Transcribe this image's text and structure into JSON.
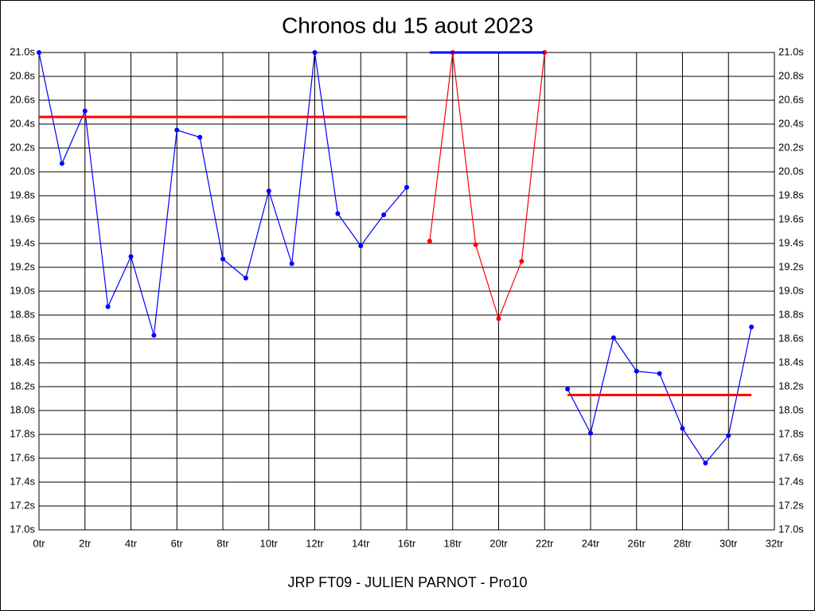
{
  "chart_data": {
    "type": "line",
    "title": "Chronos du 15 aout 2023",
    "xlabel": "JRP FT09 - JULIEN PARNOT - Pro10",
    "xlim": [
      0,
      32
    ],
    "ylim": [
      17.0,
      21.0
    ],
    "grid": true,
    "right_axis": true,
    "xticks": [
      {
        "value": 0,
        "label": "0tr"
      },
      {
        "value": 2,
        "label": "2tr"
      },
      {
        "value": 4,
        "label": "4tr"
      },
      {
        "value": 6,
        "label": "6tr"
      },
      {
        "value": 8,
        "label": "8tr"
      },
      {
        "value": 10,
        "label": "10tr"
      },
      {
        "value": 12,
        "label": "12tr"
      },
      {
        "value": 14,
        "label": "14tr"
      },
      {
        "value": 16,
        "label": "16tr"
      },
      {
        "value": 18,
        "label": "18tr"
      },
      {
        "value": 20,
        "label": "20tr"
      },
      {
        "value": 22,
        "label": "22tr"
      },
      {
        "value": 24,
        "label": "24tr"
      },
      {
        "value": 26,
        "label": "26tr"
      },
      {
        "value": 28,
        "label": "28tr"
      },
      {
        "value": 30,
        "label": "30tr"
      },
      {
        "value": 32,
        "label": "32tr"
      }
    ],
    "yticks": [
      {
        "value": 17.0,
        "label": "17.0s"
      },
      {
        "value": 17.2,
        "label": "17.2s"
      },
      {
        "value": 17.4,
        "label": "17.4s"
      },
      {
        "value": 17.6,
        "label": "17.6s"
      },
      {
        "value": 17.8,
        "label": "17.8s"
      },
      {
        "value": 18.0,
        "label": "18.0s"
      },
      {
        "value": 18.2,
        "label": "18.2s"
      },
      {
        "value": 18.4,
        "label": "18.4s"
      },
      {
        "value": 18.6,
        "label": "18.6s"
      },
      {
        "value": 18.8,
        "label": "18.8s"
      },
      {
        "value": 19.0,
        "label": "19.0s"
      },
      {
        "value": 19.2,
        "label": "19.2s"
      },
      {
        "value": 19.4,
        "label": "19.4s"
      },
      {
        "value": 19.6,
        "label": "19.6s"
      },
      {
        "value": 19.8,
        "label": "19.8s"
      },
      {
        "value": 20.0,
        "label": "20.0s"
      },
      {
        "value": 20.2,
        "label": "20.2s"
      },
      {
        "value": 20.4,
        "label": "20.4s"
      },
      {
        "value": 20.6,
        "label": "20.6s"
      },
      {
        "value": 20.8,
        "label": "20.8s"
      },
      {
        "value": 21.0,
        "label": "21.0s"
      }
    ],
    "series": [
      {
        "color": "#0000ff",
        "markers": true,
        "x": [
          0,
          1,
          2,
          3,
          4,
          5,
          6,
          7,
          8,
          9,
          10,
          11,
          12,
          13,
          14,
          15,
          16
        ],
        "values": [
          21.0,
          20.07,
          20.51,
          18.87,
          19.29,
          18.63,
          20.35,
          20.29,
          19.27,
          19.11,
          19.84,
          19.23,
          21.0,
          19.65,
          19.38,
          19.64,
          19.87
        ]
      },
      {
        "color": "#ff0000",
        "markers": true,
        "x": [
          17,
          18,
          19,
          20,
          21,
          22
        ],
        "values": [
          19.42,
          21.0,
          19.39,
          18.77,
          19.25,
          21.0
        ]
      },
      {
        "color": "#0000ff",
        "markers": true,
        "x": [
          23,
          24,
          25,
          26,
          27,
          28,
          29,
          30,
          31
        ],
        "values": [
          18.18,
          17.81,
          18.61,
          18.33,
          18.31,
          17.85,
          17.56,
          17.79,
          18.7
        ]
      },
      {
        "color": "#ff0000",
        "markers": false,
        "x": [
          0,
          16
        ],
        "values": [
          20.46,
          20.46
        ]
      },
      {
        "color": "#0000ff",
        "markers": false,
        "x": [
          17,
          22
        ],
        "values": [
          21.0,
          21.0
        ]
      },
      {
        "color": "#ff0000",
        "markers": false,
        "x": [
          23,
          31
        ],
        "values": [
          18.13,
          18.13
        ]
      }
    ]
  }
}
